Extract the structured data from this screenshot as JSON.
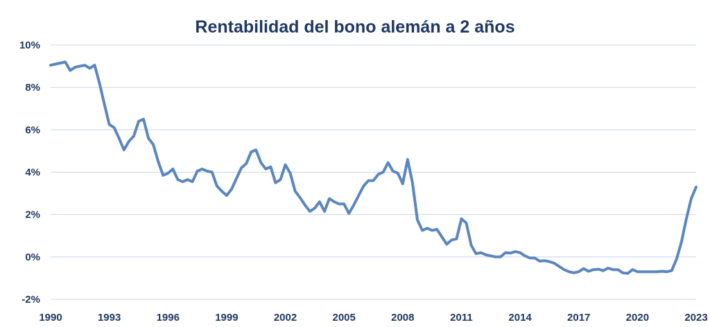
{
  "chart_data": {
    "type": "line",
    "title": "Rentabilidad del bono alemán a 2 años",
    "xlabel": "",
    "ylabel": "",
    "xlim": [
      1990,
      2023
    ],
    "ylim": [
      -2,
      10
    ],
    "grid": true,
    "x_ticks": [
      1990,
      1993,
      1996,
      1999,
      2002,
      2005,
      2008,
      2011,
      2014,
      2017,
      2020,
      2023
    ],
    "x_tick_labels": [
      "1990",
      "1993",
      "1996",
      "1999",
      "2002",
      "2005",
      "2008",
      "2011",
      "2014",
      "2017",
      "2020",
      "2023"
    ],
    "y_ticks": [
      -2,
      0,
      2,
      4,
      6,
      8,
      10
    ],
    "y_tick_labels": [
      "-2%",
      "0%",
      "2%",
      "4%",
      "6%",
      "8%",
      "10%"
    ],
    "line_color": "#5b86c0",
    "title_color": "#1f3864",
    "grid_color": "#c9d5ea",
    "series": [
      {
        "x": [
          1990.0,
          1990.25,
          1990.5,
          1990.75,
          1991.0,
          1991.25,
          1991.5,
          1991.75,
          1992.0,
          1992.25,
          1992.5,
          1992.75,
          1993.0,
          1993.25,
          1993.5,
          1993.75,
          1994.0,
          1994.25,
          1994.5,
          1994.75,
          1995.0,
          1995.25,
          1995.5,
          1995.75,
          1996.0,
          1996.25,
          1996.5,
          1996.75,
          1997.0,
          1997.25,
          1997.5,
          1997.75,
          1998.0,
          1998.25,
          1998.5,
          1998.75,
          1999.0,
          1999.25,
          1999.5,
          1999.75,
          2000.0,
          2000.25,
          2000.5,
          2000.75,
          2001.0,
          2001.25,
          2001.5,
          2001.75,
          2002.0,
          2002.25,
          2002.5,
          2002.75,
          2003.0,
          2003.25,
          2003.5,
          2003.75,
          2004.0,
          2004.25,
          2004.5,
          2004.75,
          2005.0,
          2005.25,
          2005.5,
          2005.75,
          2006.0,
          2006.25,
          2006.5,
          2006.75,
          2007.0,
          2007.25,
          2007.5,
          2007.75,
          2008.0,
          2008.25,
          2008.5,
          2008.75,
          2009.0,
          2009.25,
          2009.5,
          2009.75,
          2010.0,
          2010.25,
          2010.5,
          2010.75,
          2011.0,
          2011.25,
          2011.5,
          2011.75,
          2012.0,
          2012.25,
          2012.5,
          2012.75,
          2013.0,
          2013.25,
          2013.5,
          2013.75,
          2014.0,
          2014.25,
          2014.5,
          2014.75,
          2015.0,
          2015.25,
          2015.5,
          2015.75,
          2016.0,
          2016.25,
          2016.5,
          2016.75,
          2017.0,
          2017.25,
          2017.5,
          2017.75,
          2018.0,
          2018.25,
          2018.5,
          2018.75,
          2019.0,
          2019.25,
          2019.5,
          2019.75,
          2020.0,
          2020.25,
          2020.5,
          2020.75,
          2021.0,
          2021.25,
          2021.5,
          2021.75,
          2022.0,
          2022.25,
          2022.5,
          2022.75,
          2023.0
        ],
        "y": [
          9.05,
          9.1,
          9.15,
          9.2,
          8.8,
          8.95,
          9.0,
          9.05,
          8.9,
          9.05,
          8.2,
          7.2,
          6.25,
          6.1,
          5.6,
          5.05,
          5.45,
          5.7,
          6.4,
          6.5,
          5.6,
          5.3,
          4.5,
          3.85,
          3.95,
          4.15,
          3.65,
          3.55,
          3.65,
          3.55,
          4.05,
          4.15,
          4.05,
          4.0,
          3.35,
          3.1,
          2.9,
          3.2,
          3.7,
          4.2,
          4.4,
          4.95,
          5.05,
          4.45,
          4.15,
          4.25,
          3.5,
          3.65,
          4.35,
          3.95,
          3.1,
          2.8,
          2.45,
          2.15,
          2.3,
          2.6,
          2.15,
          2.75,
          2.6,
          2.5,
          2.5,
          2.05,
          2.45,
          2.9,
          3.35,
          3.6,
          3.6,
          3.9,
          4.0,
          4.45,
          4.05,
          3.95,
          3.45,
          4.6,
          3.5,
          1.75,
          1.25,
          1.35,
          1.25,
          1.3,
          0.95,
          0.6,
          0.8,
          0.85,
          1.8,
          1.6,
          0.55,
          0.15,
          0.2,
          0.1,
          0.05,
          0.0,
          0.0,
          0.2,
          0.18,
          0.25,
          0.2,
          0.05,
          -0.05,
          -0.05,
          -0.2,
          -0.18,
          -0.22,
          -0.3,
          -0.45,
          -0.6,
          -0.7,
          -0.75,
          -0.7,
          -0.55,
          -0.68,
          -0.6,
          -0.58,
          -0.65,
          -0.53,
          -0.6,
          -0.6,
          -0.75,
          -0.78,
          -0.6,
          -0.7,
          -0.7,
          -0.7,
          -0.7,
          -0.7,
          -0.68,
          -0.7,
          -0.65,
          -0.1,
          0.7,
          1.8,
          2.75,
          3.3
        ]
      }
    ]
  }
}
